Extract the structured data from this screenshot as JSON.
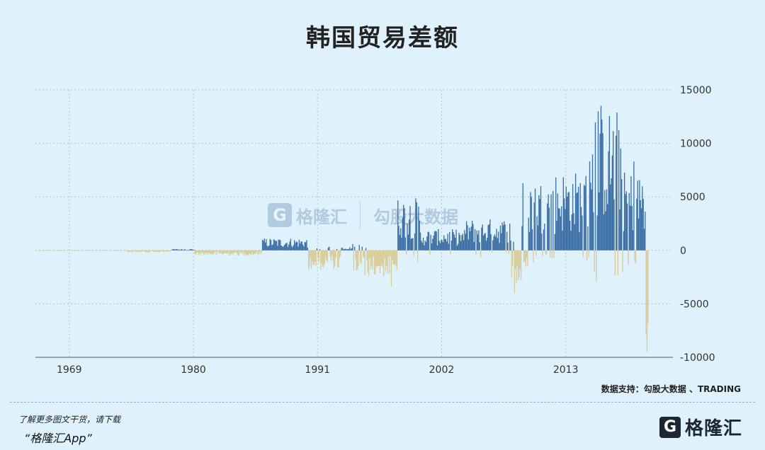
{
  "title": "韩国贸易差额",
  "source": "数据支持：勾股大数据 、TRADING",
  "footer": {
    "tip": "了解更多图文干货，请下载",
    "app": "“格隆汇App”",
    "logo_mark": "G",
    "logo_text": "格隆汇"
  },
  "watermark": {
    "mark": "G",
    "brand": "格隆汇",
    "brand2": "勾股大数据"
  },
  "colors": {
    "positive": "#3d6fa5",
    "negative": "#d8cc9a",
    "background": "#dff1fb",
    "grid": "#a9c6d6"
  },
  "chart_data": {
    "type": "bar",
    "title": "韩国贸易差额",
    "xlabel": "",
    "ylabel": "",
    "x_ticks": [
      "1969",
      "1980",
      "1991",
      "2002",
      "2013"
    ],
    "y_ticks": [
      15000,
      10000,
      5000,
      0,
      -5000,
      -10000
    ],
    "ylim": [
      -10000,
      15000
    ],
    "xlim": [
      1966.0,
      2022.5
    ],
    "grid": true,
    "y_axis_side": "right",
    "frequency": "monthly",
    "series": [
      {
        "x_start": 1966.0,
        "x_end": 2020.25,
        "positive_color": "#3d6fa5",
        "negative_color": "#d8cc9a",
        "values_by_segment": [
          {
            "from": 1966.0,
            "to": 1974.0,
            "level": -30
          },
          {
            "from": 1974.0,
            "to": 1978.0,
            "level": -120
          },
          {
            "from": 1978.0,
            "to": 1980.0,
            "level": 80
          },
          {
            "from": 1980.0,
            "to": 1986.0,
            "level": -300
          },
          {
            "from": 1986.0,
            "to": 1990.0,
            "level": 700
          },
          {
            "from": 1990.0,
            "to": 1993.0,
            "level": -1100
          },
          {
            "from": 1993.0,
            "to": 1994.0,
            "level": 200
          },
          {
            "from": 1994.0,
            "to": 1998.0,
            "level": -1500
          },
          {
            "from": 1998.0,
            "to": 2000.0,
            "level": 3000
          },
          {
            "from": 2000.0,
            "to": 2004.0,
            "level": 1200
          },
          {
            "from": 2004.0,
            "to": 2008.0,
            "level": 1800
          },
          {
            "from": 2008.0,
            "to": 2009.0,
            "level": -2500
          },
          {
            "from": 2009.0,
            "to": 2012.0,
            "level": 4000
          },
          {
            "from": 2012.0,
            "to": 2015.0,
            "level": 4500
          },
          {
            "from": 2015.0,
            "to": 2018.0,
            "level": 8000
          },
          {
            "from": 2018.0,
            "to": 2020.0,
            "level": 4500
          },
          {
            "from": 2020.0,
            "to": 2020.25,
            "level": -5000
          }
        ],
        "notable_points": [
          {
            "x": 1997.5,
            "value": -3400
          },
          {
            "x": 2008.4,
            "value": -4000
          },
          {
            "x": 2016.1,
            "value": 13500
          },
          {
            "x": 2015.8,
            "value": 13000
          },
          {
            "x": 2019.0,
            "value": 8300
          },
          {
            "x": 2020.2,
            "value": -9500
          }
        ]
      }
    ]
  }
}
